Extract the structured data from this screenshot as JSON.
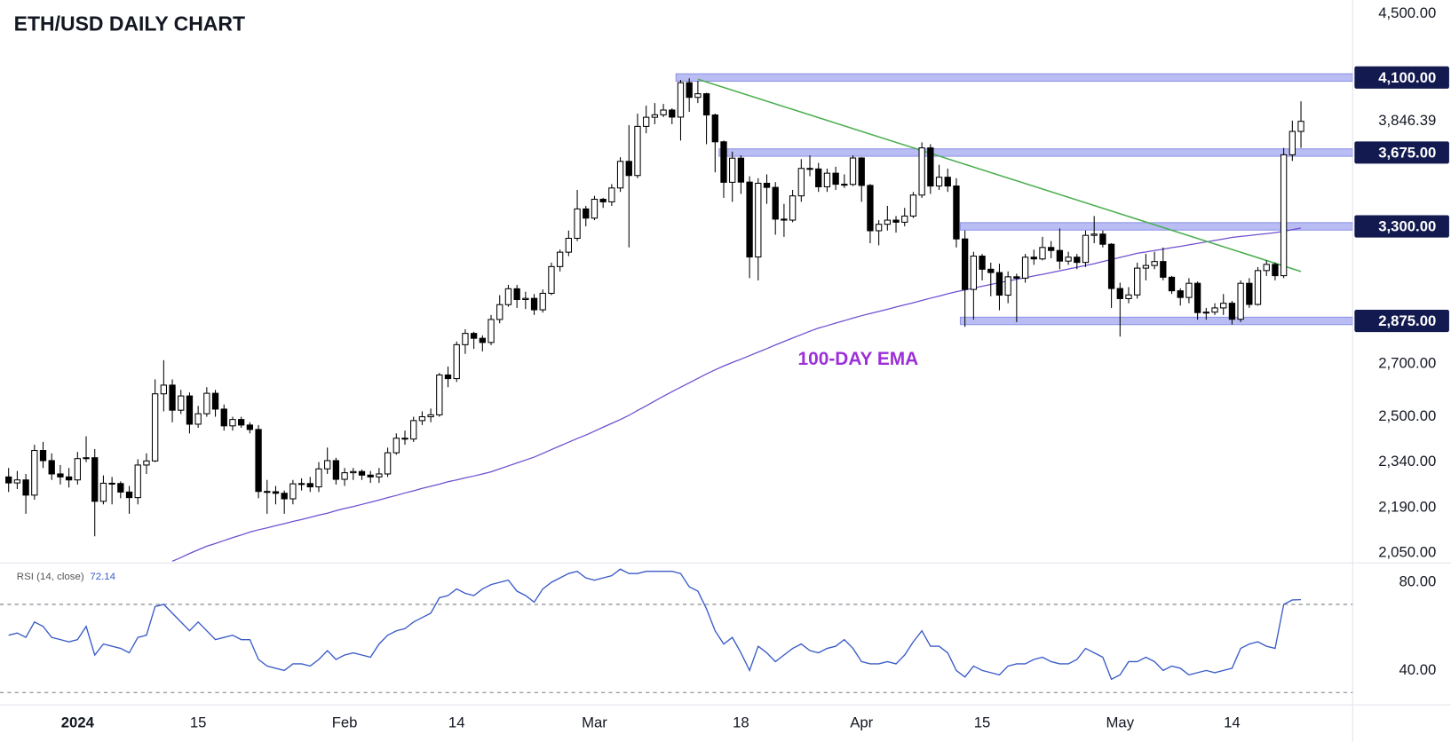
{
  "chart_data": {
    "type": "candlestick",
    "title": "ETH/USD DAILY CHART",
    "log_scale": true,
    "grid": false,
    "xlim": [
      "2023-12-23",
      "2024-05-28"
    ],
    "ylim": [
      2020,
      4590
    ],
    "yticks": [
      {
        "value": 4500,
        "label": "4,500.00"
      },
      {
        "value": 2700,
        "label": "2,700.00"
      },
      {
        "value": 2500,
        "label": "2,500.00"
      },
      {
        "value": 2340,
        "label": "2,340.00"
      },
      {
        "value": 2190,
        "label": "2,190.00"
      },
      {
        "value": 2050,
        "label": "2,050.00"
      }
    ],
    "xticks": [
      {
        "value": "2024-01-01",
        "label": "2024"
      },
      {
        "value": "2024-01-15",
        "label": "15"
      },
      {
        "value": "2024-02-01",
        "label": "Feb"
      },
      {
        "value": "2024-02-14",
        "label": "14"
      },
      {
        "value": "2024-03-01",
        "label": "Mar"
      },
      {
        "value": "2024-03-18",
        "label": "18"
      },
      {
        "value": "2024-04-01",
        "label": "Apr"
      },
      {
        "value": "2024-04-15",
        "label": "15"
      },
      {
        "value": "2024-05-01",
        "label": "May"
      },
      {
        "value": "2024-05-14",
        "label": "14"
      }
    ],
    "x": [
      "2023-12-24",
      "2023-12-25",
      "2023-12-26",
      "2023-12-27",
      "2023-12-28",
      "2023-12-29",
      "2023-12-30",
      "2023-12-31",
      "2024-01-01",
      "2024-01-02",
      "2024-01-03",
      "2024-01-04",
      "2024-01-05",
      "2024-01-06",
      "2024-01-07",
      "2024-01-08",
      "2024-01-09",
      "2024-01-10",
      "2024-01-11",
      "2024-01-12",
      "2024-01-13",
      "2024-01-14",
      "2024-01-15",
      "2024-01-16",
      "2024-01-17",
      "2024-01-18",
      "2024-01-19",
      "2024-01-20",
      "2024-01-21",
      "2024-01-22",
      "2024-01-23",
      "2024-01-24",
      "2024-01-25",
      "2024-01-26",
      "2024-01-27",
      "2024-01-28",
      "2024-01-29",
      "2024-01-30",
      "2024-01-31",
      "2024-02-01",
      "2024-02-02",
      "2024-02-03",
      "2024-02-04",
      "2024-02-05",
      "2024-02-06",
      "2024-02-07",
      "2024-02-08",
      "2024-02-09",
      "2024-02-10",
      "2024-02-11",
      "2024-02-12",
      "2024-02-13",
      "2024-02-14",
      "2024-02-15",
      "2024-02-16",
      "2024-02-17",
      "2024-02-18",
      "2024-02-19",
      "2024-02-20",
      "2024-02-21",
      "2024-02-22",
      "2024-02-23",
      "2024-02-24",
      "2024-02-25",
      "2024-02-26",
      "2024-02-27",
      "2024-02-28",
      "2024-02-29",
      "2024-03-01",
      "2024-03-02",
      "2024-03-03",
      "2024-03-04",
      "2024-03-05",
      "2024-03-06",
      "2024-03-07",
      "2024-03-08",
      "2024-03-09",
      "2024-03-10",
      "2024-03-11",
      "2024-03-12",
      "2024-03-13",
      "2024-03-14",
      "2024-03-15",
      "2024-03-16",
      "2024-03-17",
      "2024-03-18",
      "2024-03-19",
      "2024-03-20",
      "2024-03-21",
      "2024-03-22",
      "2024-03-23",
      "2024-03-24",
      "2024-03-25",
      "2024-03-26",
      "2024-03-27",
      "2024-03-28",
      "2024-03-29",
      "2024-03-30",
      "2024-03-31",
      "2024-04-01",
      "2024-04-02",
      "2024-04-03",
      "2024-04-04",
      "2024-04-05",
      "2024-04-06",
      "2024-04-07",
      "2024-04-08",
      "2024-04-09",
      "2024-04-10",
      "2024-04-11",
      "2024-04-12",
      "2024-04-13",
      "2024-04-14",
      "2024-04-15",
      "2024-04-16",
      "2024-04-17",
      "2024-04-18",
      "2024-04-19",
      "2024-04-20",
      "2024-04-21",
      "2024-04-22",
      "2024-04-23",
      "2024-04-24",
      "2024-04-25",
      "2024-04-26",
      "2024-04-27",
      "2024-04-28",
      "2024-04-29",
      "2024-04-30",
      "2024-05-01",
      "2024-05-02",
      "2024-05-03",
      "2024-05-04",
      "2024-05-05",
      "2024-05-06",
      "2024-05-07",
      "2024-05-08",
      "2024-05-09",
      "2024-05-10",
      "2024-05-11",
      "2024-05-12",
      "2024-05-13",
      "2024-05-14",
      "2024-05-15",
      "2024-05-16",
      "2024-05-17",
      "2024-05-18",
      "2024-05-19",
      "2024-05-20",
      "2024-05-21",
      "2024-05-22"
    ],
    "candles": {
      "up_color": "#ffffff",
      "down_color": "#000000",
      "open": [
        2290,
        2270,
        2280,
        2230,
        2380,
        2345,
        2300,
        2290,
        2280,
        2352,
        2355,
        2210,
        2269,
        2268,
        2240,
        2222,
        2330,
        2344,
        2585,
        2618,
        2524,
        2577,
        2473,
        2511,
        2587,
        2528,
        2467,
        2490,
        2470,
        2454,
        2242,
        2241,
        2236,
        2218,
        2267,
        2268,
        2257,
        2317,
        2345,
        2282,
        2304,
        2308,
        2296,
        2290,
        2300,
        2372,
        2423,
        2420,
        2486,
        2500,
        2507,
        2657,
        2643,
        2777,
        2823,
        2803,
        2786,
        2881,
        2944,
        3013,
        2966,
        2971,
        2922,
        2993,
        3112,
        3178,
        3243,
        3385,
        3340,
        3433,
        3420,
        3490,
        3628,
        3554,
        3818,
        3869,
        3883,
        3910,
        3870,
        4069,
        3983,
        4004,
        3882,
        3733,
        3519,
        3645,
        3520,
        3156,
        3514,
        3493,
        3335,
        3330,
        3450,
        3591,
        3588,
        3496,
        3566,
        3509,
        3508,
        3646,
        3503,
        3279,
        3310,
        3330,
        3320,
        3350,
        3454,
        3700,
        3500,
        3545,
        3500,
        3240,
        3010,
        3160,
        3100,
        3085,
        2985,
        3066,
        3060,
        3155,
        3147,
        3200,
        3186,
        3137,
        3155,
        3131,
        3257,
        3263,
        3215,
        3014,
        2970,
        2986,
        3105,
        3117,
        3135,
        3064,
        3004,
        2975,
        3037,
        2910,
        2912,
        2930,
        2950,
        2882,
        3037,
        2945,
        3094,
        3122,
        3071,
        3663,
        3790
      ],
      "high": [
        2320,
        2310,
        2300,
        2400,
        2410,
        2370,
        2330,
        2320,
        2375,
        2430,
        2385,
        2295,
        2290,
        2275,
        2260,
        2350,
        2370,
        2640,
        2715,
        2640,
        2600,
        2590,
        2540,
        2610,
        2600,
        2545,
        2500,
        2500,
        2480,
        2470,
        2280,
        2260,
        2245,
        2280,
        2285,
        2290,
        2340,
        2390,
        2355,
        2320,
        2320,
        2315,
        2310,
        2320,
        2390,
        2440,
        2450,
        2500,
        2520,
        2530,
        2665,
        2690,
        2790,
        2840,
        2830,
        2815,
        2900,
        2985,
        3030,
        3030,
        3000,
        2990,
        3010,
        3130,
        3190,
        3280,
        3480,
        3400,
        3450,
        3440,
        3510,
        3650,
        3825,
        3890,
        3935,
        3950,
        3945,
        3920,
        4085,
        4095,
        4080,
        4010,
        3890,
        3740,
        3680,
        3660,
        3550,
        3540,
        3560,
        3520,
        3410,
        3480,
        3640,
        3660,
        3620,
        3590,
        3600,
        3560,
        3660,
        3650,
        3510,
        3330,
        3400,
        3350,
        3390,
        3470,
        3730,
        3720,
        3610,
        3590,
        3540,
        3280,
        3180,
        3170,
        3130,
        3125,
        3090,
        3080,
        3170,
        3190,
        3250,
        3230,
        3290,
        3180,
        3170,
        3280,
        3350,
        3280,
        3220,
        3040,
        3020,
        3130,
        3170,
        3180,
        3200,
        3070,
        3015,
        3060,
        3045,
        2930,
        2950,
        2990,
        2960,
        3050,
        3060,
        3110,
        3140,
        3130,
        3700,
        3850,
        3960
      ],
      "low": [
        2240,
        2250,
        2170,
        2215,
        2320,
        2280,
        2265,
        2255,
        2265,
        2340,
        2100,
        2200,
        2200,
        2220,
        2170,
        2200,
        2300,
        2340,
        2520,
        2480,
        2510,
        2440,
        2460,
        2500,
        2500,
        2450,
        2450,
        2460,
        2440,
        2220,
        2170,
        2200,
        2170,
        2200,
        2245,
        2240,
        2240,
        2300,
        2265,
        2260,
        2280,
        2280,
        2270,
        2270,
        2290,
        2365,
        2400,
        2410,
        2470,
        2480,
        2500,
        2610,
        2630,
        2740,
        2760,
        2750,
        2775,
        2865,
        2935,
        2930,
        2925,
        2900,
        2910,
        2985,
        3090,
        3160,
        3230,
        3300,
        3330,
        3390,
        3400,
        3470,
        3200,
        3540,
        3780,
        3830,
        3870,
        3830,
        3740,
        3900,
        3950,
        3720,
        3570,
        3440,
        3420,
        3460,
        3060,
        3050,
        3410,
        3260,
        3250,
        3320,
        3420,
        3550,
        3470,
        3470,
        3480,
        3490,
        3500,
        3420,
        3220,
        3210,
        3280,
        3270,
        3300,
        3340,
        3440,
        3460,
        3480,
        3470,
        3200,
        2850,
        2880,
        3050,
        2980,
        2920,
        2950,
        2870,
        3040,
        3120,
        3140,
        3150,
        3100,
        3120,
        3100,
        3110,
        3220,
        3200,
        2930,
        2810,
        2950,
        2970,
        3050,
        3100,
        3050,
        2990,
        2940,
        2950,
        2880,
        2880,
        2900,
        2900,
        2860,
        2870,
        2930,
        2940,
        3070,
        3050,
        3060,
        3630,
        3700
      ],
      "close": [
        2270,
        2280,
        2230,
        2380,
        2345,
        2300,
        2290,
        2280,
        2352,
        2355,
        2210,
        2269,
        2268,
        2240,
        2222,
        2330,
        2344,
        2585,
        2618,
        2524,
        2577,
        2473,
        2511,
        2587,
        2528,
        2467,
        2490,
        2470,
        2454,
        2242,
        2241,
        2236,
        2218,
        2267,
        2268,
        2257,
        2317,
        2345,
        2282,
        2304,
        2308,
        2296,
        2290,
        2300,
        2372,
        2423,
        2420,
        2486,
        2500,
        2507,
        2657,
        2643,
        2777,
        2823,
        2803,
        2786,
        2881,
        2944,
        3013,
        2966,
        2971,
        2922,
        2993,
        3112,
        3178,
        3243,
        3385,
        3340,
        3433,
        3420,
        3490,
        3628,
        3554,
        3818,
        3869,
        3883,
        3910,
        3870,
        4069,
        3983,
        4004,
        3882,
        3733,
        3519,
        3645,
        3520,
        3156,
        3514,
        3493,
        3335,
        3330,
        3450,
        3591,
        3588,
        3496,
        3566,
        3509,
        3508,
        3646,
        3503,
        3279,
        3310,
        3330,
        3320,
        3350,
        3454,
        3700,
        3500,
        3545,
        3500,
        3240,
        3010,
        3160,
        3100,
        3085,
        2985,
        3066,
        3060,
        3155,
        3147,
        3200,
        3186,
        3137,
        3155,
        3131,
        3257,
        3263,
        3215,
        3014,
        2970,
        2986,
        3105,
        3117,
        3135,
        3064,
        3004,
        2975,
        3037,
        2910,
        2912,
        2930,
        2950,
        2882,
        3037,
        2945,
        3094,
        3122,
        3071,
        3663,
        3790,
        3846.39
      ],
      "last_close_label": "3,846.39"
    },
    "ema": {
      "name": "100-DAY EMA",
      "color": "#6e4fd0",
      "values": [
        null,
        null,
        null,
        null,
        null,
        null,
        null,
        null,
        null,
        null,
        null,
        null,
        null,
        null,
        null,
        null,
        null,
        null,
        null,
        2025,
        2036,
        2048,
        2059,
        2070,
        2078,
        2087,
        2096,
        2104,
        2113,
        2120,
        2126,
        2133,
        2139,
        2146,
        2152,
        2159,
        2166,
        2172,
        2180,
        2187,
        2193,
        2200,
        2207,
        2214,
        2222,
        2229,
        2237,
        2244,
        2252,
        2259,
        2266,
        2274,
        2280,
        2287,
        2293,
        2300,
        2307,
        2317,
        2327,
        2337,
        2347,
        2357,
        2370,
        2383,
        2396,
        2409,
        2422,
        2434,
        2448,
        2462,
        2476,
        2490,
        2505,
        2523,
        2540,
        2558,
        2576,
        2593,
        2610,
        2627,
        2644,
        2661,
        2677,
        2692,
        2706,
        2719,
        2733,
        2747,
        2761,
        2776,
        2790,
        2804,
        2818,
        2832,
        2845,
        2855,
        2866,
        2876,
        2887,
        2897,
        2906,
        2915,
        2924,
        2934,
        2943,
        2952,
        2962,
        2972,
        2981,
        2991,
        3000,
        3008,
        3016,
        3024,
        3032,
        3040,
        3047,
        3055,
        3062,
        3070,
        3077,
        3085,
        3093,
        3101,
        3109,
        3117,
        3125,
        3135,
        3144,
        3154,
        3163,
        3173,
        3179,
        3186,
        3192,
        3199,
        3205,
        3212,
        3219,
        3226,
        3233,
        3240,
        3247,
        3252,
        3256,
        3261,
        3265,
        3270,
        3276,
        3284,
        3292
      ]
    },
    "annotation_color": "#9b2fd8",
    "levels": [
      {
        "value": 4100,
        "label": "4,100.00",
        "x_start": "2024-03-11"
      },
      {
        "value": 3675,
        "label": "3,675.00",
        "x_start": "2024-03-16"
      },
      {
        "value": 3300,
        "label": "3,300.00",
        "x_start": "2024-04-13"
      },
      {
        "value": 2875,
        "label": "2,875.00",
        "x_start": "2024-04-13"
      }
    ],
    "level_color": "#b9bdf3",
    "level_label_color": "#131a4f",
    "trendline": {
      "x": [
        "2024-03-13",
        "2024-05-22"
      ],
      "values": [
        4090,
        3090
      ],
      "color": "#4caf50"
    },
    "rsi": {
      "name": "RSI (14, close)",
      "color": "#3a5bc7",
      "ylim": [
        24.4,
        88.8
      ],
      "yticks": [
        {
          "value": 80,
          "label": "80.00"
        },
        {
          "value": 40,
          "label": "40.00"
        }
      ],
      "levels": [
        70,
        30
      ],
      "values": [
        56,
        57,
        55,
        62,
        60,
        55,
        54,
        53,
        54,
        60,
        47,
        52,
        51,
        50,
        48,
        55,
        56,
        69,
        70,
        66,
        62,
        58,
        62,
        58,
        54,
        55,
        56,
        54,
        54,
        45,
        42,
        41,
        40,
        43,
        43,
        42,
        45,
        49,
        45,
        47,
        48,
        47,
        46,
        52,
        56,
        58,
        59,
        62,
        64,
        66,
        73,
        74,
        77,
        75,
        74,
        77,
        79,
        80,
        81,
        76,
        74,
        71,
        77,
        80,
        82,
        84,
        85,
        82,
        81,
        82,
        83,
        86,
        84,
        84,
        85,
        85,
        85,
        85,
        84,
        78,
        76,
        68,
        58,
        52,
        55,
        48,
        40,
        51,
        48,
        44,
        47,
        50,
        52,
        49,
        48,
        50,
        51,
        54,
        50,
        44,
        43,
        43,
        44,
        43,
        47,
        53,
        58,
        51,
        51,
        48,
        40,
        37,
        42,
        40,
        39,
        38,
        42,
        43,
        43,
        45,
        46,
        44,
        43,
        43,
        45,
        50,
        48,
        46,
        36,
        38,
        44,
        44,
        46,
        44,
        40,
        42,
        41,
        38,
        39,
        40,
        39,
        40,
        41,
        50,
        52,
        53,
        51,
        50,
        70,
        72,
        72.14
      ]
    }
  }
}
